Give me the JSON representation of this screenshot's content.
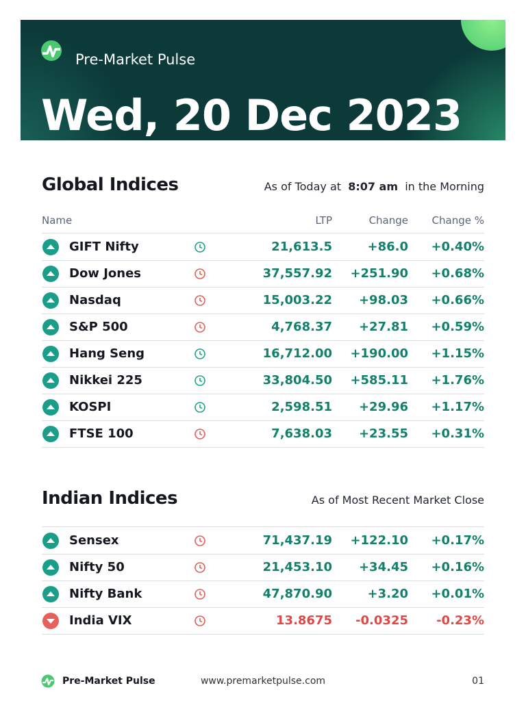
{
  "header": {
    "brand": "Pre-Market Pulse",
    "date": "Wed, 20 Dec 2023"
  },
  "global": {
    "title": "Global Indices",
    "subtitle_pre": "As of Today at",
    "time": "8:07 am",
    "subtitle_post": "in the Morning",
    "columns": [
      "Name",
      "LTP",
      "Change",
      "Change %"
    ],
    "rows": [
      {
        "name": "GIFT Nifty",
        "ltp": "21,613.5",
        "change": "+86.0",
        "change_pct": "+0.40%",
        "color": "#12806b",
        "clock_color": "#1fa38a"
      },
      {
        "name": "Dow Jones",
        "ltp": "37,557.92",
        "change": "+251.90",
        "change_pct": "+0.68%",
        "color": "#12806b",
        "clock_color": "#e0605a"
      },
      {
        "name": "Nasdaq",
        "ltp": "15,003.22",
        "change": "+98.03",
        "change_pct": "+0.66%",
        "color": "#12806b",
        "clock_color": "#e0605a"
      },
      {
        "name": "S&P 500",
        "ltp": "4,768.37",
        "change": "+27.81",
        "change_pct": "+0.59%",
        "color": "#12806b",
        "clock_color": "#e0605a"
      },
      {
        "name": "Hang Seng",
        "ltp": "16,712.00",
        "change": "+190.00",
        "change_pct": "+1.15%",
        "color": "#12806b",
        "clock_color": "#1fa38a"
      },
      {
        "name": "Nikkei 225",
        "ltp": "33,804.50",
        "change": "+585.11",
        "change_pct": "+1.76%",
        "color": "#12806b",
        "clock_color": "#1fa38a"
      },
      {
        "name": "KOSPI",
        "ltp": "2,598.51",
        "change": "+29.96",
        "change_pct": "+1.17%",
        "color": "#12806b",
        "clock_color": "#1fa38a"
      },
      {
        "name": "FTSE 100",
        "ltp": "7,638.03",
        "change": "+23.55",
        "change_pct": "+0.31%",
        "color": "#12806b",
        "clock_color": "#e0605a"
      }
    ]
  },
  "indian": {
    "title": "Indian Indices",
    "subtitle": "As of Most Recent Market Close",
    "rows": [
      {
        "name": "Sensex",
        "ltp": "71,437.19",
        "change": "+122.10",
        "change_pct": "+0.17%",
        "color": "#12806b",
        "clock_color": "#e0605a"
      },
      {
        "name": "Nifty 50",
        "ltp": "21,453.10",
        "change": "+34.45",
        "change_pct": "+0.16%",
        "color": "#12806b",
        "clock_color": "#e0605a"
      },
      {
        "name": "Nifty Bank",
        "ltp": "47,870.90",
        "change": "+3.20",
        "change_pct": "+0.01%",
        "color": "#12806b",
        "clock_color": "#e0605a"
      },
      {
        "name": "India VIX",
        "ltp": "13.8675",
        "change": "-0.0325",
        "change_pct": "-0.23%",
        "color": "#e04848",
        "clock_color": "#e0605a"
      }
    ]
  },
  "footer": {
    "brand": "Pre-Market Pulse",
    "url": "www.premarketpulse.com",
    "page": "01"
  }
}
